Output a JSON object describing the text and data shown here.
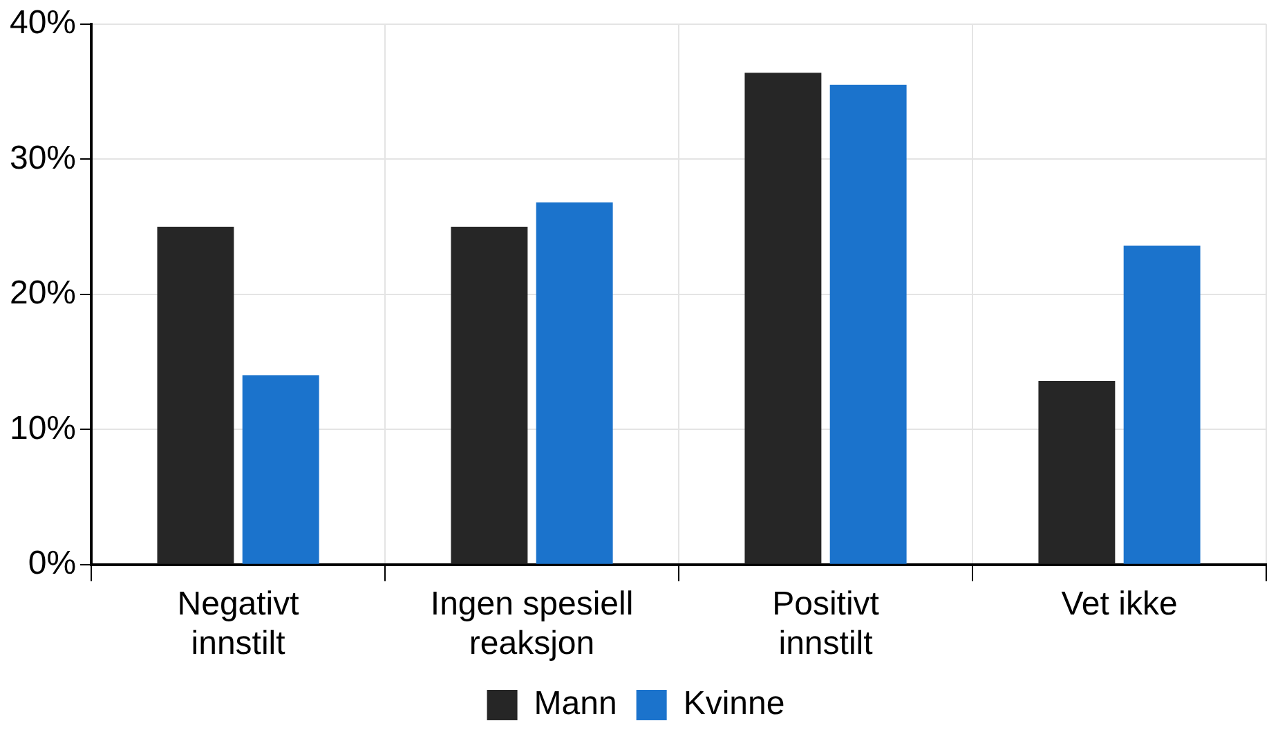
{
  "chart_data": {
    "type": "bar",
    "categories": [
      "Negativt\ninnstilt",
      "Ingen spesiell\nreaksjon",
      "Positivt\ninnstilt",
      "Vet ikke"
    ],
    "series": [
      {
        "name": "Mann",
        "color": "#262626",
        "values": [
          25,
          25,
          36.4,
          13.6
        ]
      },
      {
        "name": "Kvinne",
        "color": "#1b73cc",
        "values": [
          14,
          26.8,
          35.5,
          23.6
        ]
      }
    ],
    "ylim": [
      0,
      40
    ],
    "yticks": [
      {
        "value": 0,
        "label": "0%"
      },
      {
        "value": 10,
        "label": "10%"
      },
      {
        "value": 20,
        "label": "20%"
      },
      {
        "value": 30,
        "label": "30%"
      },
      {
        "value": 40,
        "label": "40%"
      }
    ],
    "grid": true,
    "legend": "bottom"
  }
}
